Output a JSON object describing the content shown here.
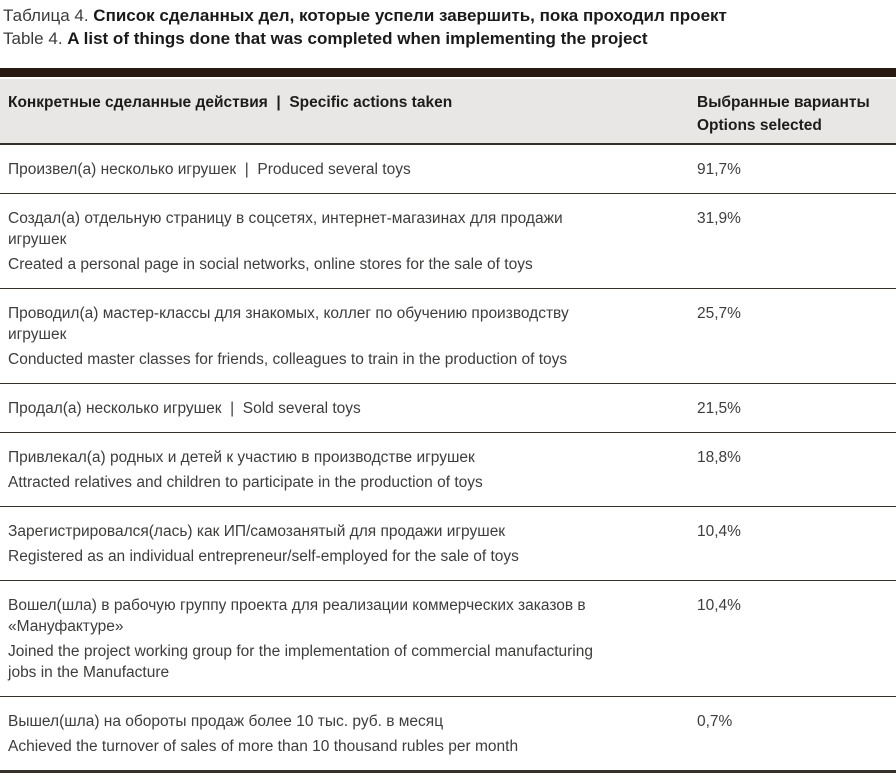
{
  "caption": {
    "ru_label": "Таблица 4.",
    "ru_title": "Список сделанных дел, которые успели завершить, пока проходил проект",
    "en_label": "Table 4.",
    "en_title": "A list of things done that was completed when implementing the project"
  },
  "table": {
    "header": {
      "actions": "Конкретные сделанные действия  |  Specific actions taken",
      "options_ru": "Выбранные варианты",
      "options_en": "Options selected"
    },
    "rows": [
      {
        "blocks": [
          [
            "Произвел(а) несколько игрушек  |  Produced several toys"
          ]
        ],
        "value": "91,7%"
      },
      {
        "blocks": [
          [
            "Создал(а) отдельную страницу в соцсетях, интернет-магазинах для продажи",
            "игрушек"
          ],
          [
            "Created a personal page in social networks, online stores for the sale of toys"
          ]
        ],
        "value": "31,9%"
      },
      {
        "blocks": [
          [
            "Проводил(а) мастер-классы для знакомых, коллег по обучению производству",
            "игрушек"
          ],
          [
            "Conducted master classes for friends, colleagues to train in the production of toys"
          ]
        ],
        "value": "25,7%"
      },
      {
        "blocks": [
          [
            "Продал(а) несколько игрушек  |  Sold several toys"
          ]
        ],
        "value": "21,5%"
      },
      {
        "blocks": [
          [
            "Привлекал(а) родных и детей к участию в производстве игрушек"
          ],
          [
            "Attracted relatives and children to participate in the production of toys"
          ]
        ],
        "value": "18,8%"
      },
      {
        "blocks": [
          [
            "Зарегистрировался(лась) как ИП/самозанятый для продажи игрушек"
          ],
          [
            "Registered as an individual entrepreneur/self-employed for the sale of toys"
          ]
        ],
        "value": "10,4%"
      },
      {
        "blocks": [
          [
            "Вошел(шла) в рабочую группу проекта для реализации коммерческих заказов в",
            "«Мануфактуре»"
          ],
          [
            "Joined the project working group for the implementation of commercial manufacturing",
            "jobs in the Manufacture"
          ]
        ],
        "value": "10,4%"
      },
      {
        "blocks": [
          [
            "Вышел(шла) на обороты продаж более 10 тыс. руб. в месяц"
          ],
          [
            "Achieved the turnover of sales of more than 10 thousand rubles per month"
          ]
        ],
        "value": "0,7%"
      }
    ]
  },
  "colors": {
    "top_bar": "#281a10",
    "header_background": "#e9e7e5",
    "row_border": "#35302a",
    "body_text": "#3f3d3b",
    "bold_text": "#1a1a1a"
  }
}
